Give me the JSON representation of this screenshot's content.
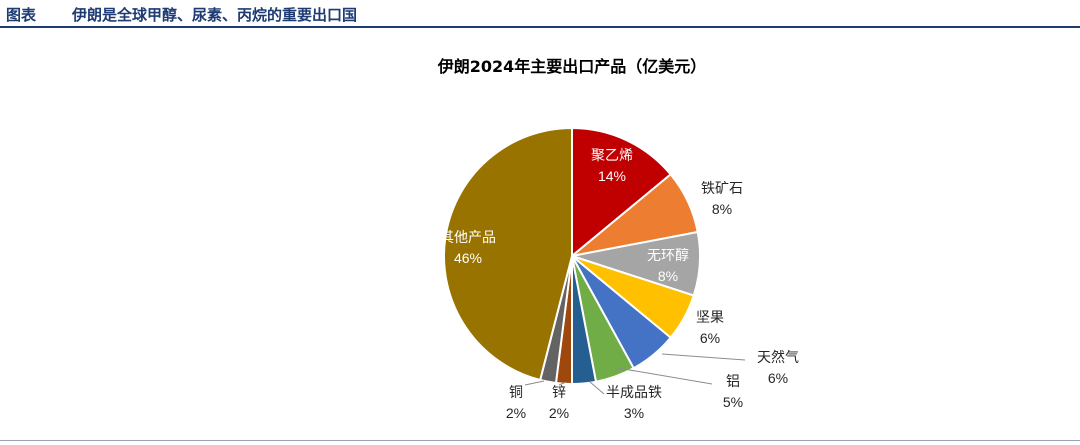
{
  "header": {
    "figure_label": "图表",
    "figure_title": "伊朗是全球甲醇、尿素、丙烷的重要出口国"
  },
  "chart_data": {
    "type": "pie",
    "title": "伊朗2024年主要出口产品（亿美元）",
    "slices": [
      {
        "label": "聚乙烯",
        "pct_label": "14%",
        "value": 14,
        "color": "#c00000"
      },
      {
        "label": "铁矿石",
        "pct_label": "8%",
        "value": 8,
        "color": "#ed7d31"
      },
      {
        "label": "无环醇",
        "pct_label": "8%",
        "value": 8,
        "color": "#a5a5a5"
      },
      {
        "label": "坚果",
        "pct_label": "6%",
        "value": 6,
        "color": "#ffc000"
      },
      {
        "label": "天然气",
        "pct_label": "6%",
        "value": 6,
        "color": "#4472c4"
      },
      {
        "label": "铝",
        "pct_label": "5%",
        "value": 5,
        "color": "#70ad47"
      },
      {
        "label": "半成品铁",
        "pct_label": "3%",
        "value": 3,
        "color": "#255e91"
      },
      {
        "label": "锌",
        "pct_label": "2%",
        "value": 2,
        "color": "#9e480e"
      },
      {
        "label": "铜",
        "pct_label": "2%",
        "value": 2,
        "color": "#636363"
      },
      {
        "label": "其他产品",
        "pct_label": "46%",
        "value": 46,
        "color": "#997300"
      }
    ]
  }
}
